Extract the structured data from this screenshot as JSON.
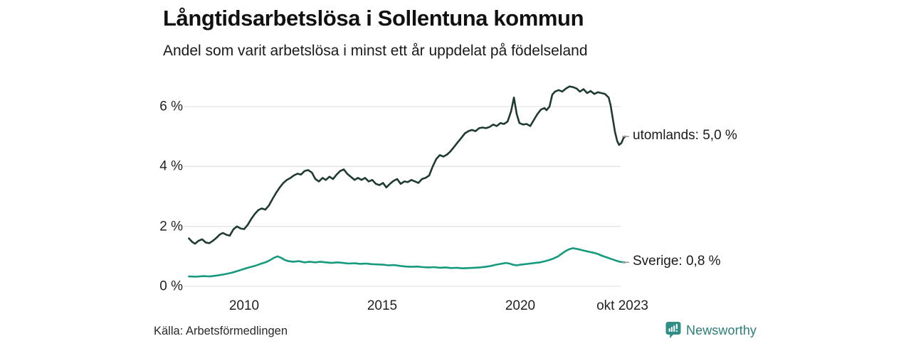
{
  "header": {
    "title": "Långtidsarbetslösa i Sollentuna kommun",
    "subtitle": "Andel som varit arbetslösa i minst ett år uppdelat på födelseland"
  },
  "footer": {
    "source": "Källa: Arbetsförmedlingen",
    "brand": "Newsworthy",
    "brand_icon": "newsworthy-chart-bubble-icon"
  },
  "colors": {
    "background": "#ffffff",
    "gridline": "#e4e4e4",
    "text": "#1a1a1a",
    "tick_dash": "#9a9a9a",
    "series_utomlands": "#1e3a33",
    "series_sverige": "#169a7d",
    "brand_teal": "#2f8e85",
    "brand_text_teal": "#2b7e77"
  },
  "chart_data": {
    "type": "line",
    "title": "Långtidsarbetslösa i Sollentuna kommun",
    "subtitle": "Andel som varit arbetslösa i minst ett år uppdelat på födelseland",
    "unit": "%",
    "x_range": [
      2008.0,
      2023.79
    ],
    "ylim": [
      0,
      7
    ],
    "grid": "horizontal-only",
    "legend_position": "end-of-line-labels",
    "yticks": [
      {
        "value": 6,
        "label": "6 %"
      },
      {
        "value": 4,
        "label": "4 %"
      },
      {
        "value": 2,
        "label": "2 %"
      },
      {
        "value": 0,
        "label": "0 %"
      }
    ],
    "xticks": [
      {
        "year": 2010,
        "label": "2010"
      },
      {
        "year": 2015,
        "label": "2015"
      },
      {
        "year": 2020,
        "label": "2020"
      },
      {
        "year": 2023.7,
        "label": "okt 2023"
      }
    ],
    "series": [
      {
        "name": "utomlands",
        "label": "utomlands: 5,0 %",
        "end_value": 5.0,
        "color": "#1e3a33",
        "points": [
          [
            2008.0,
            1.6
          ],
          [
            2008.12,
            1.48
          ],
          [
            2008.22,
            1.42
          ],
          [
            2008.35,
            1.52
          ],
          [
            2008.48,
            1.57
          ],
          [
            2008.61,
            1.46
          ],
          [
            2008.74,
            1.44
          ],
          [
            2008.87,
            1.52
          ],
          [
            2009.0,
            1.62
          ],
          [
            2009.12,
            1.73
          ],
          [
            2009.23,
            1.78
          ],
          [
            2009.36,
            1.72
          ],
          [
            2009.48,
            1.69
          ],
          [
            2009.61,
            1.9
          ],
          [
            2009.74,
            2.0
          ],
          [
            2009.87,
            1.93
          ],
          [
            2010.0,
            1.91
          ],
          [
            2010.13,
            2.05
          ],
          [
            2010.26,
            2.25
          ],
          [
            2010.39,
            2.42
          ],
          [
            2010.52,
            2.55
          ],
          [
            2010.64,
            2.6
          ],
          [
            2010.77,
            2.56
          ],
          [
            2010.9,
            2.7
          ],
          [
            2011.03,
            2.92
          ],
          [
            2011.16,
            3.12
          ],
          [
            2011.29,
            3.3
          ],
          [
            2011.42,
            3.45
          ],
          [
            2011.55,
            3.55
          ],
          [
            2011.68,
            3.62
          ],
          [
            2011.8,
            3.7
          ],
          [
            2011.93,
            3.76
          ],
          [
            2012.06,
            3.73
          ],
          [
            2012.19,
            3.85
          ],
          [
            2012.32,
            3.88
          ],
          [
            2012.45,
            3.8
          ],
          [
            2012.58,
            3.58
          ],
          [
            2012.71,
            3.5
          ],
          [
            2012.84,
            3.62
          ],
          [
            2012.96,
            3.55
          ],
          [
            2013.09,
            3.66
          ],
          [
            2013.22,
            3.58
          ],
          [
            2013.35,
            3.73
          ],
          [
            2013.48,
            3.85
          ],
          [
            2013.61,
            3.9
          ],
          [
            2013.74,
            3.75
          ],
          [
            2013.87,
            3.65
          ],
          [
            2014.0,
            3.55
          ],
          [
            2014.12,
            3.62
          ],
          [
            2014.25,
            3.55
          ],
          [
            2014.38,
            3.62
          ],
          [
            2014.51,
            3.5
          ],
          [
            2014.64,
            3.55
          ],
          [
            2014.77,
            3.42
          ],
          [
            2014.9,
            3.38
          ],
          [
            2015.03,
            3.45
          ],
          [
            2015.15,
            3.3
          ],
          [
            2015.28,
            3.42
          ],
          [
            2015.41,
            3.52
          ],
          [
            2015.54,
            3.58
          ],
          [
            2015.67,
            3.42
          ],
          [
            2015.8,
            3.5
          ],
          [
            2015.93,
            3.48
          ],
          [
            2016.06,
            3.55
          ],
          [
            2016.19,
            3.5
          ],
          [
            2016.31,
            3.45
          ],
          [
            2016.44,
            3.58
          ],
          [
            2016.57,
            3.62
          ],
          [
            2016.7,
            3.7
          ],
          [
            2016.83,
            4.0
          ],
          [
            2016.96,
            4.25
          ],
          [
            2017.09,
            4.38
          ],
          [
            2017.22,
            4.33
          ],
          [
            2017.35,
            4.4
          ],
          [
            2017.47,
            4.5
          ],
          [
            2017.6,
            4.65
          ],
          [
            2017.73,
            4.8
          ],
          [
            2017.86,
            4.95
          ],
          [
            2017.99,
            5.1
          ],
          [
            2018.12,
            5.18
          ],
          [
            2018.25,
            5.22
          ],
          [
            2018.38,
            5.18
          ],
          [
            2018.51,
            5.28
          ],
          [
            2018.63,
            5.3
          ],
          [
            2018.76,
            5.28
          ],
          [
            2018.89,
            5.32
          ],
          [
            2019.02,
            5.4
          ],
          [
            2019.15,
            5.35
          ],
          [
            2019.28,
            5.45
          ],
          [
            2019.41,
            5.42
          ],
          [
            2019.54,
            5.5
          ],
          [
            2019.67,
            5.85
          ],
          [
            2019.77,
            6.3
          ],
          [
            2019.87,
            5.75
          ],
          [
            2019.97,
            5.45
          ],
          [
            2020.1,
            5.4
          ],
          [
            2020.23,
            5.42
          ],
          [
            2020.36,
            5.35
          ],
          [
            2020.49,
            5.55
          ],
          [
            2020.62,
            5.75
          ],
          [
            2020.75,
            5.9
          ],
          [
            2020.88,
            5.95
          ],
          [
            2020.95,
            5.88
          ],
          [
            2021.06,
            6.0
          ],
          [
            2021.16,
            6.4
          ],
          [
            2021.26,
            6.5
          ],
          [
            2021.39,
            6.55
          ],
          [
            2021.52,
            6.5
          ],
          [
            2021.65,
            6.6
          ],
          [
            2021.78,
            6.67
          ],
          [
            2021.91,
            6.65
          ],
          [
            2022.04,
            6.6
          ],
          [
            2022.16,
            6.5
          ],
          [
            2022.29,
            6.58
          ],
          [
            2022.42,
            6.45
          ],
          [
            2022.55,
            6.52
          ],
          [
            2022.68,
            6.42
          ],
          [
            2022.81,
            6.48
          ],
          [
            2022.94,
            6.45
          ],
          [
            2023.07,
            6.42
          ],
          [
            2023.2,
            6.3
          ],
          [
            2023.27,
            6.05
          ],
          [
            2023.35,
            5.6
          ],
          [
            2023.43,
            5.15
          ],
          [
            2023.51,
            4.85
          ],
          [
            2023.58,
            4.72
          ],
          [
            2023.66,
            4.78
          ],
          [
            2023.74,
            4.95
          ],
          [
            2023.79,
            5.0
          ]
        ]
      },
      {
        "name": "Sverige",
        "label": "Sverige: 0,8 %",
        "end_value": 0.8,
        "color": "#169a7d",
        "points": [
          [
            2008.0,
            0.33
          ],
          [
            2008.25,
            0.32
          ],
          [
            2008.51,
            0.34
          ],
          [
            2008.76,
            0.33
          ],
          [
            2009.02,
            0.36
          ],
          [
            2009.28,
            0.4
          ],
          [
            2009.54,
            0.45
          ],
          [
            2009.79,
            0.52
          ],
          [
            2010.0,
            0.58
          ],
          [
            2010.18,
            0.63
          ],
          [
            2010.39,
            0.68
          ],
          [
            2010.57,
            0.74
          ],
          [
            2010.77,
            0.8
          ],
          [
            2010.95,
            0.88
          ],
          [
            2011.08,
            0.95
          ],
          [
            2011.21,
            1.0
          ],
          [
            2011.34,
            0.95
          ],
          [
            2011.47,
            0.88
          ],
          [
            2011.6,
            0.84
          ],
          [
            2011.78,
            0.82
          ],
          [
            2011.98,
            0.84
          ],
          [
            2012.19,
            0.8
          ],
          [
            2012.37,
            0.82
          ],
          [
            2012.58,
            0.8
          ],
          [
            2012.76,
            0.82
          ],
          [
            2012.96,
            0.8
          ],
          [
            2013.17,
            0.78
          ],
          [
            2013.38,
            0.8
          ],
          [
            2013.58,
            0.78
          ],
          [
            2013.79,
            0.76
          ],
          [
            2014.0,
            0.77
          ],
          [
            2014.2,
            0.75
          ],
          [
            2014.41,
            0.76
          ],
          [
            2014.61,
            0.74
          ],
          [
            2014.82,
            0.73
          ],
          [
            2015.03,
            0.72
          ],
          [
            2015.23,
            0.7
          ],
          [
            2015.44,
            0.71
          ],
          [
            2015.65,
            0.68
          ],
          [
            2015.85,
            0.66
          ],
          [
            2016.06,
            0.65
          ],
          [
            2016.26,
            0.66
          ],
          [
            2016.47,
            0.64
          ],
          [
            2016.68,
            0.63
          ],
          [
            2016.88,
            0.64
          ],
          [
            2017.09,
            0.62
          ],
          [
            2017.3,
            0.63
          ],
          [
            2017.5,
            0.61
          ],
          [
            2017.71,
            0.62
          ],
          [
            2017.91,
            0.6
          ],
          [
            2018.12,
            0.61
          ],
          [
            2018.33,
            0.62
          ],
          [
            2018.53,
            0.63
          ],
          [
            2018.74,
            0.65
          ],
          [
            2018.94,
            0.68
          ],
          [
            2019.12,
            0.72
          ],
          [
            2019.3,
            0.75
          ],
          [
            2019.48,
            0.78
          ],
          [
            2019.61,
            0.76
          ],
          [
            2019.74,
            0.72
          ],
          [
            2019.87,
            0.7
          ],
          [
            2020.0,
            0.72
          ],
          [
            2020.18,
            0.74
          ],
          [
            2020.36,
            0.76
          ],
          [
            2020.54,
            0.78
          ],
          [
            2020.72,
            0.8
          ],
          [
            2020.9,
            0.84
          ],
          [
            2021.06,
            0.88
          ],
          [
            2021.21,
            0.93
          ],
          [
            2021.37,
            1.0
          ],
          [
            2021.52,
            1.1
          ],
          [
            2021.65,
            1.18
          ],
          [
            2021.78,
            1.24
          ],
          [
            2021.91,
            1.27
          ],
          [
            2022.04,
            1.25
          ],
          [
            2022.19,
            1.22
          ],
          [
            2022.35,
            1.18
          ],
          [
            2022.5,
            1.15
          ],
          [
            2022.66,
            1.12
          ],
          [
            2022.81,
            1.08
          ],
          [
            2022.96,
            1.02
          ],
          [
            2023.12,
            0.97
          ],
          [
            2023.27,
            0.92
          ],
          [
            2023.43,
            0.87
          ],
          [
            2023.56,
            0.83
          ],
          [
            2023.66,
            0.81
          ],
          [
            2023.79,
            0.8
          ]
        ]
      }
    ]
  }
}
